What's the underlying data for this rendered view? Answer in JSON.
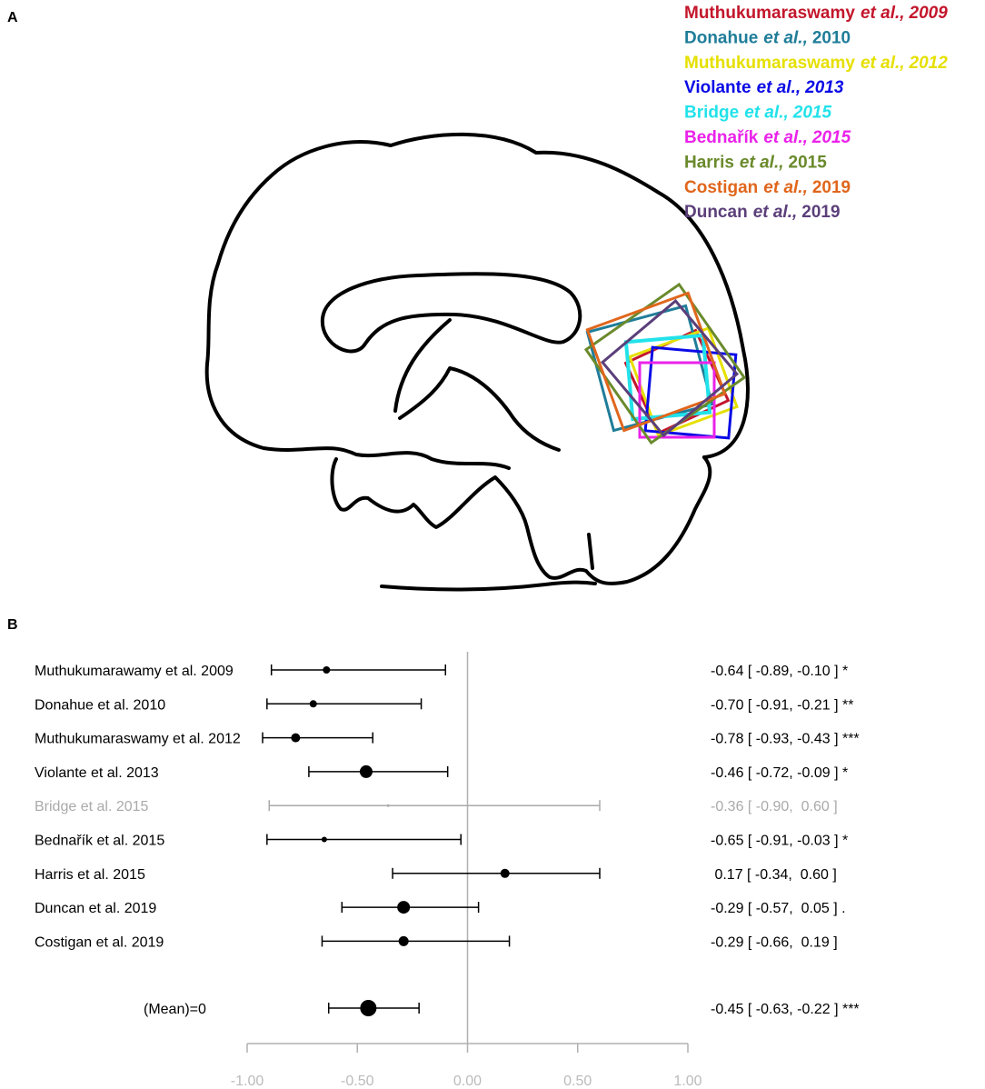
{
  "panel_a": {
    "label": "A",
    "legend": [
      {
        "author": "Muthukumaraswamy",
        "etal": "et al.,",
        "year": "2009",
        "color": "#c3162c",
        "italic_year": true
      },
      {
        "author": "Donahue",
        "etal": "et al.,",
        "year": "2010",
        "color": "#1f7d99",
        "italic_year": false
      },
      {
        "author": "Muthukumaraswamy",
        "etal": "et al.,",
        "year": "2012",
        "color": "#e6e000",
        "italic_year": true
      },
      {
        "author": "Violante",
        "etal": "et al.,",
        "year": "2013",
        "color": "#0a0ae6",
        "italic_year": true
      },
      {
        "author": "Bridge",
        "etal": "et al.,",
        "year": "2015",
        "color": "#22e2ea",
        "italic_year": true
      },
      {
        "author": "Bednařík",
        "etal": "et al.,",
        "year": "2015",
        "color": "#ea22ea",
        "italic_year": true
      },
      {
        "author": "Harris",
        "etal": "et al.,",
        "year": "2015",
        "color": "#6a8a2c",
        "italic_year": false
      },
      {
        "author": "Costigan",
        "etal": "et al.,",
        "year": "2019",
        "color": "#e0661c",
        "italic_year": false
      },
      {
        "author": "Duncan",
        "etal": "et al.,",
        "year": "2019",
        "color": "#5b3f7a",
        "italic_year": false
      }
    ]
  },
  "chart_data": {
    "type": "forest",
    "panel_label": "B",
    "categories": [
      "Muthukumarawamy et al. 2009",
      "Donahue et al. 2010",
      "Muthukumaraswamy et al. 2012",
      "Violante et al. 2013",
      "Bridge et al. 2015",
      "Bednařík et al. 2015",
      "Harris et al. 2015",
      "Duncan et al. 2019",
      "Costigan et al. 2019"
    ],
    "values": [
      -0.64,
      -0.7,
      -0.78,
      -0.46,
      -0.36,
      -0.65,
      0.17,
      -0.29,
      -0.29
    ],
    "lower": [
      -0.89,
      -0.91,
      -0.93,
      -0.72,
      -0.9,
      -0.91,
      -0.34,
      -0.57,
      -0.66
    ],
    "upper": [
      -0.1,
      -0.21,
      -0.43,
      -0.09,
      0.6,
      -0.03,
      0.6,
      0.05,
      0.19
    ],
    "value_labels": [
      "-0.64 [ -0.89, -0.10 ] *",
      "-0.70 [ -0.91, -0.21 ] **",
      "-0.78 [ -0.93, -0.43 ] ***",
      "-0.46 [ -0.72, -0.09 ] *",
      "-0.36 [ -0.90,  0.60 ]",
      "-0.65 [ -0.91, -0.03 ] *",
      " 0.17 [ -0.34,  0.60 ]",
      "-0.29 [ -0.57,  0.05 ] .",
      "-0.29 [ -0.66,  0.19 ]"
    ],
    "colors": [
      "#000000",
      "#000000",
      "#000000",
      "#000000",
      "#aaaaaa",
      "#000000",
      "#000000",
      "#000000",
      "#000000"
    ],
    "summary": {
      "label": "(Mean)=0",
      "value": -0.45,
      "lower": -0.63,
      "upper": -0.22,
      "value_label": "-0.45 [ -0.63, -0.22 ] ***"
    },
    "ref_line": 0,
    "xlim": [
      -1,
      1
    ],
    "xticks": [
      {
        "value": -1,
        "label": "-1.00"
      },
      {
        "value": -0.5,
        "label": "-0.50"
      },
      {
        "value": 0,
        "label": "0.00"
      },
      {
        "value": 0.5,
        "label": "0.50"
      },
      {
        "value": 1,
        "label": "1.00"
      }
    ]
  }
}
